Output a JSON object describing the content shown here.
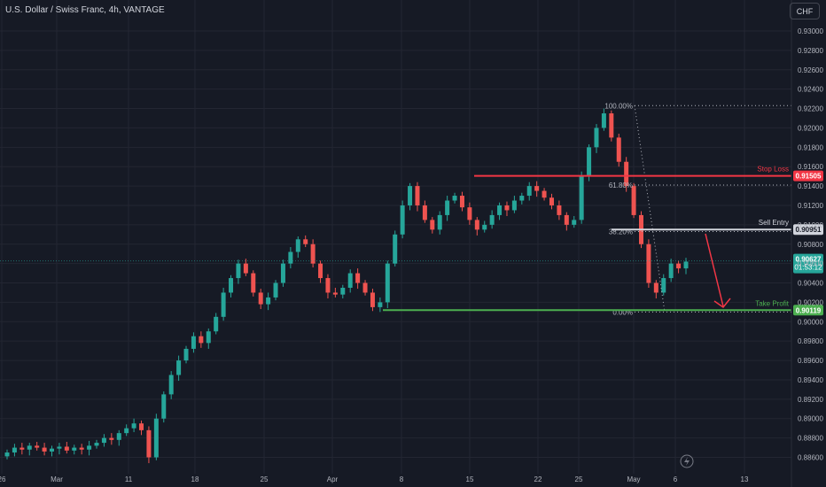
{
  "title": "U.S. Dollar / Swiss Franc, 4h, VANTAGE",
  "currency": "CHF",
  "colors": {
    "bg": "#161a25",
    "up": "#26a69a",
    "down": "#ef5350",
    "grid": "#232632",
    "stop": "#f23645",
    "entry": "#d1d4dc",
    "profit": "#4caf50",
    "arrow": "#f23645",
    "fib": "#b2b5be"
  },
  "chart_data": {
    "type": "candlestick",
    "ylim": [
      0.885,
      0.9325
    ],
    "yticks": [
      "0.93000",
      "0.92800",
      "0.92600",
      "0.92400",
      "0.92200",
      "0.92000",
      "0.91800",
      "0.91600",
      "0.91400",
      "0.91200",
      "0.91000",
      "0.90800",
      "0.90600",
      "0.90400",
      "0.90200",
      "0.90000",
      "0.89800",
      "0.89600",
      "0.89400",
      "0.89200",
      "0.89000",
      "0.88800",
      "0.88600"
    ],
    "xticks": [
      "26",
      "Mar",
      "11",
      "18",
      "25",
      "Apr",
      "8",
      "15",
      "22",
      "25",
      "May",
      "6",
      "13"
    ],
    "levels": {
      "stop_loss": {
        "label": "Stop Loss",
        "value": "0.91505"
      },
      "sell_entry": {
        "label": "Sell Entry",
        "value": "0.90951"
      },
      "take_profit": {
        "label": "Take Profit",
        "value": "0.90119"
      }
    },
    "fib_levels": [
      {
        "label": "100.00%",
        "value": 0.9223
      },
      {
        "label": "61.80%",
        "value": 0.9141
      },
      {
        "label": "38.20%",
        "value": 0.9093
      },
      {
        "label": "0.00%",
        "value": 0.901
      }
    ],
    "current_price": {
      "value": "0.90627",
      "countdown": "01:53:12"
    },
    "closes": [
      0.8865,
      0.887,
      0.8868,
      0.8872,
      0.887,
      0.8866,
      0.8869,
      0.8871,
      0.8867,
      0.887,
      0.8868,
      0.8872,
      0.8875,
      0.888,
      0.8878,
      0.8885,
      0.889,
      0.8895,
      0.8888,
      0.886,
      0.89,
      0.8925,
      0.8945,
      0.896,
      0.8972,
      0.8985,
      0.8978,
      0.899,
      0.9005,
      0.903,
      0.9045,
      0.906,
      0.905,
      0.903,
      0.9018,
      0.9025,
      0.904,
      0.906,
      0.9072,
      0.9085,
      0.908,
      0.906,
      0.9045,
      0.903,
      0.9028,
      0.9035,
      0.905,
      0.904,
      0.903,
      0.9015,
      0.902,
      0.906,
      0.909,
      0.912,
      0.914,
      0.912,
      0.9105,
      0.9095,
      0.911,
      0.9125,
      0.913,
      0.9118,
      0.9105,
      0.9095,
      0.91,
      0.911,
      0.912,
      0.9115,
      0.9125,
      0.913,
      0.914,
      0.9135,
      0.9128,
      0.912,
      0.911,
      0.91,
      0.9105,
      0.915,
      0.918,
      0.92,
      0.9215,
      0.919,
      0.9165,
      0.914,
      0.911,
      0.908,
      0.904,
      0.903,
      0.9045,
      0.906,
      0.9055,
      0.9062
    ]
  }
}
